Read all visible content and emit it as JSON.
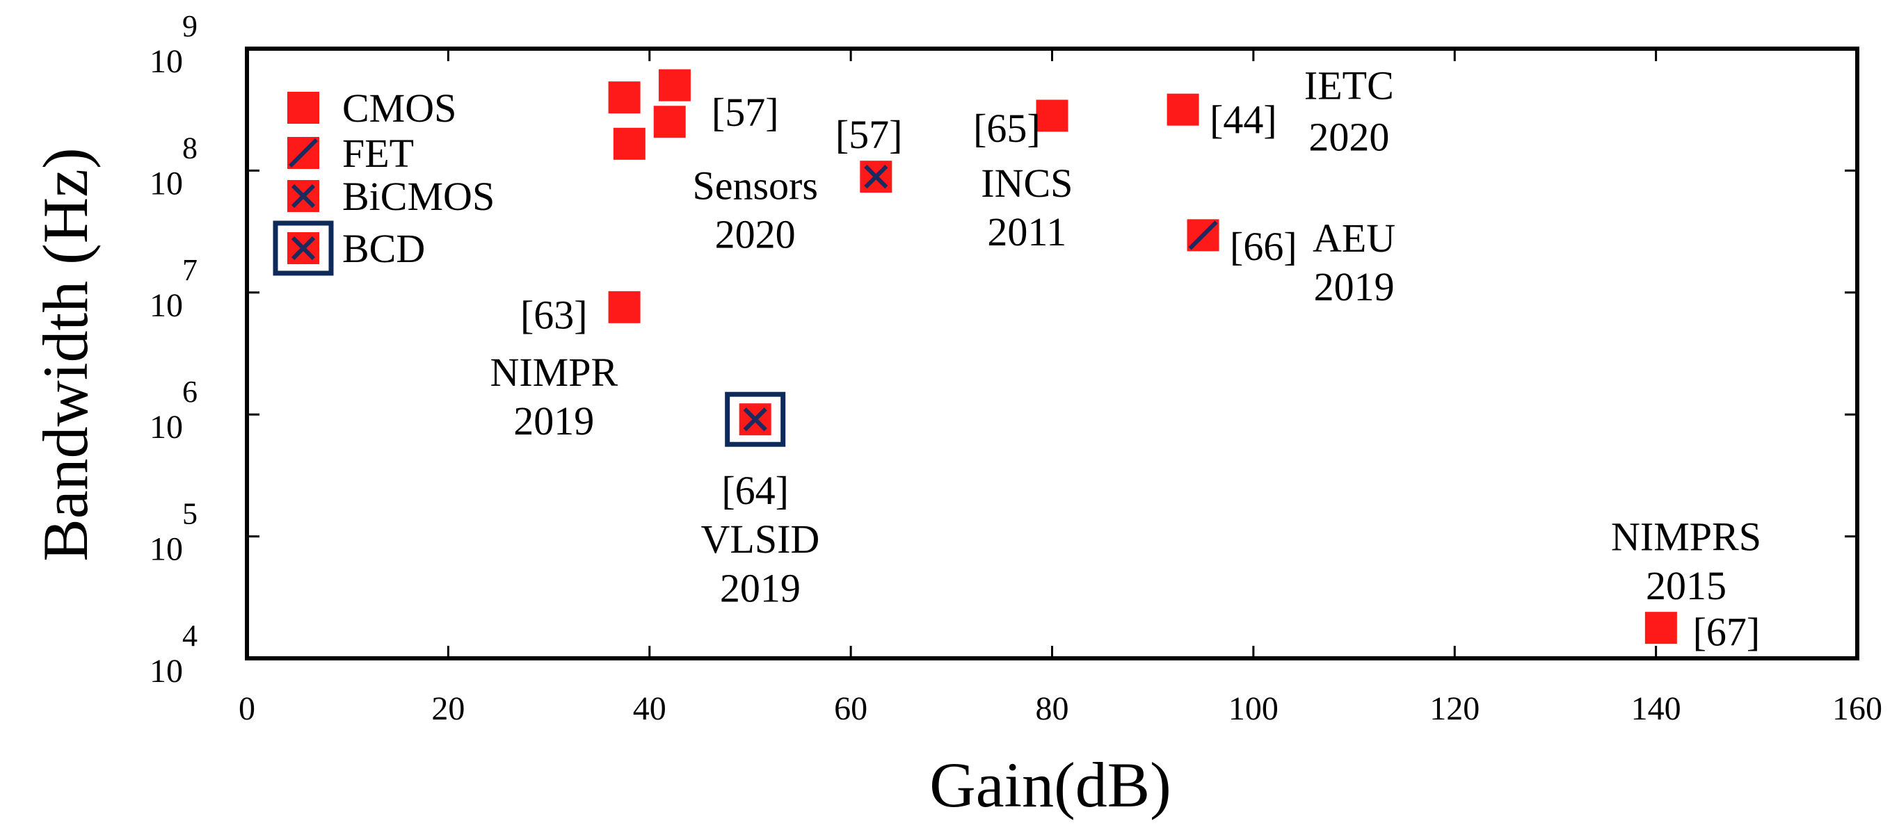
{
  "chart_data": {
    "type": "scatter",
    "title": "",
    "xlabel": "Gain(dB)",
    "ylabel": "Bandwidth (Hz)",
    "xlim": [
      0,
      160
    ],
    "ylim_log10": [
      4,
      9
    ],
    "yscale": "log",
    "grid": false,
    "x_ticks": [
      {
        "value": 0,
        "label": "0"
      },
      {
        "value": 20,
        "label": "20"
      },
      {
        "value": 40,
        "label": "40"
      },
      {
        "value": 60,
        "label": "60"
      },
      {
        "value": 80,
        "label": "80"
      },
      {
        "value": 100,
        "label": "100"
      },
      {
        "value": 120,
        "label": "120"
      },
      {
        "value": 140,
        "label": "140"
      },
      {
        "value": 160,
        "label": "160"
      }
    ],
    "y_ticks": [
      {
        "exp": 4,
        "base": "10",
        "sup": "4"
      },
      {
        "exp": 5,
        "base": "10",
        "sup": "5"
      },
      {
        "exp": 6,
        "base": "10",
        "sup": "6"
      },
      {
        "exp": 7,
        "base": "10",
        "sup": "7"
      },
      {
        "exp": 8,
        "base": "10",
        "sup": "8"
      },
      {
        "exp": 9,
        "base": "10",
        "sup": "9"
      }
    ],
    "legend": {
      "placement": "top-left",
      "entries": [
        {
          "name": "CMOS",
          "style": "plain"
        },
        {
          "name": "FET",
          "style": "slash"
        },
        {
          "name": "BiCMOS",
          "style": "cross"
        },
        {
          "name": "BCD",
          "style": "cross-boxed"
        }
      ]
    },
    "points": [
      {
        "x": 37.5,
        "log10_y": 8.6,
        "style": "plain"
      },
      {
        "x": 42.5,
        "log10_y": 8.7,
        "style": "plain"
      },
      {
        "x": 42,
        "log10_y": 8.4,
        "style": "plain"
      },
      {
        "x": 38,
        "log10_y": 8.22,
        "style": "plain"
      },
      {
        "x": 62.5,
        "log10_y": 7.95,
        "style": "cross"
      },
      {
        "x": 80,
        "log10_y": 8.45,
        "style": "plain"
      },
      {
        "x": 93,
        "log10_y": 8.5,
        "style": "plain"
      },
      {
        "x": 95,
        "log10_y": 7.47,
        "style": "slash"
      },
      {
        "x": 37.5,
        "log10_y": 6.88,
        "style": "plain"
      },
      {
        "x": 50.5,
        "log10_y": 5.96,
        "style": "cross-boxed"
      },
      {
        "x": 140.5,
        "log10_y": 4.25,
        "style": "plain"
      }
    ],
    "annotations": [
      {
        "text": "[57]",
        "x": 49.5,
        "log10_y": 8.48
      },
      {
        "text": "[57]",
        "x": 61.8,
        "log10_y": 8.3
      },
      {
        "text": "Sensors",
        "x": 50.5,
        "log10_y": 7.88
      },
      {
        "text": "2020",
        "x": 50.5,
        "log10_y": 7.48
      },
      {
        "text": "[65]",
        "x": 75.5,
        "log10_y": 8.35
      },
      {
        "text": "INCS",
        "x": 77.5,
        "log10_y": 7.9
      },
      {
        "text": "2011",
        "x": 77.5,
        "log10_y": 7.5
      },
      {
        "text": "[44]",
        "x": 99,
        "log10_y": 8.42
      },
      {
        "text": "IETC",
        "x": 109.5,
        "log10_y": 8.7
      },
      {
        "text": "2020",
        "x": 109.5,
        "log10_y": 8.28
      },
      {
        "text": "[66]",
        "x": 101,
        "log10_y": 7.38
      },
      {
        "text": "AEU",
        "x": 110,
        "log10_y": 7.45
      },
      {
        "text": "2019",
        "x": 110,
        "log10_y": 7.05
      },
      {
        "text": "[63]",
        "x": 30.5,
        "log10_y": 6.82
      },
      {
        "text": "NIMPR",
        "x": 30.5,
        "log10_y": 6.35
      },
      {
        "text": "2019",
        "x": 30.5,
        "log10_y": 5.95
      },
      {
        "text": "[64]",
        "x": 50.5,
        "log10_y": 5.38
      },
      {
        "text": "VLSID",
        "x": 51,
        "log10_y": 4.98
      },
      {
        "text": "2019",
        "x": 51,
        "log10_y": 4.58
      },
      {
        "text": "NIMPRS",
        "x": 143,
        "log10_y": 5.0
      },
      {
        "text": "2015",
        "x": 143,
        "log10_y": 4.6
      },
      {
        "text": "[67]",
        "x": 147,
        "log10_y": 4.22
      }
    ]
  },
  "colors": {
    "marker_fill": "#ff1a1a",
    "marker_cross": "#1c2a5e",
    "box_outline": "#0e2a5a",
    "axis": "#000000",
    "text": "#000000"
  }
}
